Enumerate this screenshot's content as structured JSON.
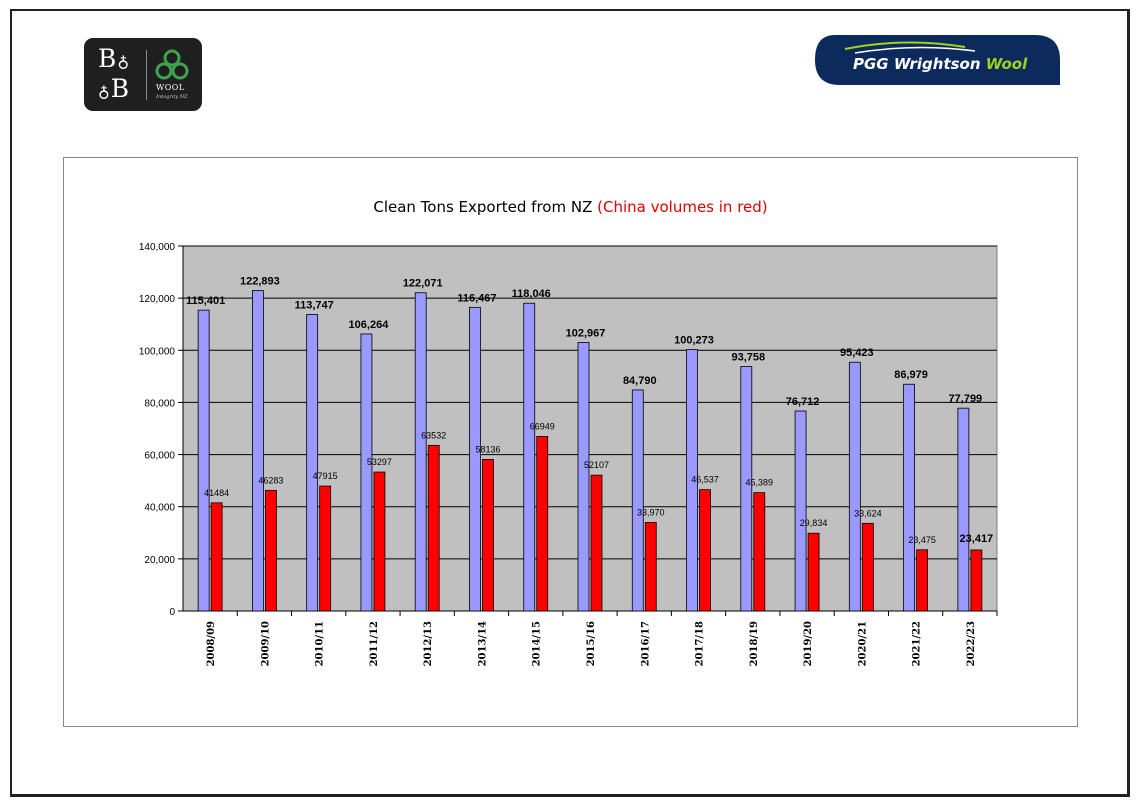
{
  "logos": {
    "left_monogram_top": "B",
    "left_monogram_bottom": "B",
    "left_label": "WOOL",
    "left_sub": "Integrity NZ",
    "right_brand": "PGG Wrightson",
    "right_brand_suffix": "Wool"
  },
  "colors": {
    "total_bar": "#9999ff",
    "china_bar": "#ff0000",
    "plot_bg": "#c0c0c0",
    "pgg_navy": "#0d2a5c",
    "pgg_green": "#9fd21b"
  },
  "chart_data": {
    "type": "bar",
    "title": "Clean Tons Exported from NZ",
    "title_note": "(China volumes in red)",
    "categories": [
      "2008/09",
      "2009/10",
      "2010/11",
      "2011/12",
      "2012/13",
      "2013/14",
      "2014/15",
      "2015/16",
      "2016/17",
      "2017/18",
      "2018/19",
      "2019/20",
      "2020/21",
      "2021/22",
      "2022/23"
    ],
    "series": [
      {
        "values": [
          115401,
          122893,
          113747,
          106264,
          122071,
          116467,
          118046,
          102967,
          84790,
          100273,
          93758,
          76712,
          95423,
          86979,
          77799
        ],
        "labels": [
          "115,401",
          "122,893",
          "113,747",
          "106,264",
          "122,071",
          "116,467",
          "118,046",
          "102,967",
          "84,790",
          "100,273",
          "93,758",
          "76,712",
          "95,423",
          "86,979",
          "77,799"
        ]
      },
      {
        "values": [
          41484,
          46283,
          47915,
          53297,
          63532,
          58136,
          66949,
          52107,
          33970,
          46537,
          45389,
          29834,
          33624,
          23475,
          23417
        ],
        "labels": [
          "41484",
          "46283",
          "47915",
          "53297",
          "63532",
          "58136",
          "66949",
          "52107",
          "33,970",
          "46,537",
          "45,389",
          "29,834",
          "33,624",
          "23,475",
          "23,417"
        ]
      }
    ],
    "ylim": [
      0,
      140000
    ],
    "yticks": [
      0,
      20000,
      40000,
      60000,
      80000,
      100000,
      120000,
      140000
    ],
    "ytick_labels": [
      "0",
      "20,000",
      "40,000",
      "60,000",
      "80,000",
      "100,000",
      "120,000",
      "140,000"
    ],
    "grid": true,
    "xlabel": "",
    "ylabel": ""
  }
}
